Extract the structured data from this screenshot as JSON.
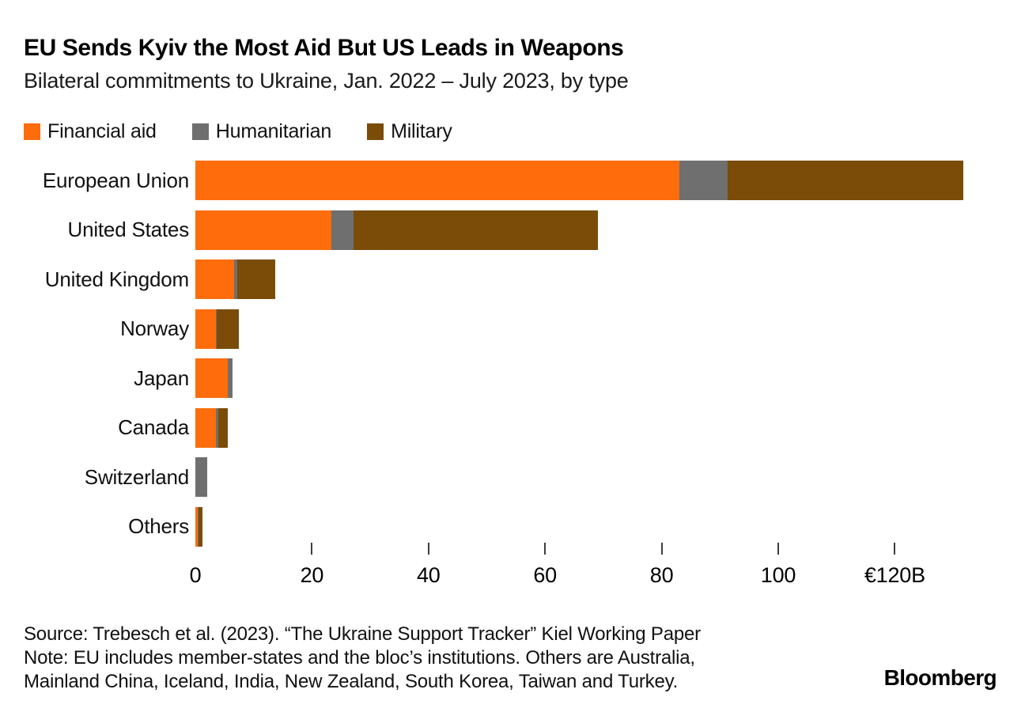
{
  "header": {
    "title": "EU Sends Kyiv the Most Aid But US Leads in Weapons",
    "subtitle": "Bilateral commitments to Ukraine, Jan. 2022 – July 2023, by type"
  },
  "legend": [
    {
      "label": "Financial aid",
      "color": "#FF6C0C"
    },
    {
      "label": "Humanitarian",
      "color": "#6F6F6F"
    },
    {
      "label": "Military",
      "color": "#7A4C08"
    }
  ],
  "chart_data": {
    "type": "bar",
    "orientation": "horizontal",
    "stacked": true,
    "unit": "EUR billions",
    "title": "EU Sends Kyiv the Most Aid But US Leads in Weapons",
    "subtitle": "Bilateral commitments to Ukraine, Jan. 2022 – July 2023, by type",
    "categories": [
      "European Union",
      "United States",
      "United Kingdom",
      "Norway",
      "Japan",
      "Canada",
      "Switzerland",
      "Others"
    ],
    "series": [
      {
        "name": "Financial aid",
        "color": "#FF6C0C",
        "values": [
          83,
          23.4,
          6.7,
          3.5,
          5.6,
          3.5,
          0,
          0.4
        ]
      },
      {
        "name": "Humanitarian",
        "color": "#6F6F6F",
        "values": [
          8.3,
          3.7,
          0.5,
          0.2,
          0.8,
          0.4,
          2.1,
          0.2
        ]
      },
      {
        "name": "Military",
        "color": "#7A4C08",
        "values": [
          40.5,
          42,
          6.5,
          3.7,
          0,
          1.6,
          0,
          0.6
        ]
      }
    ],
    "totals": [
      131.8,
      69.1,
      13.7,
      7.4,
      6.4,
      5.5,
      2.1,
      1.2
    ],
    "xlim": [
      0,
      133
    ],
    "grid": false,
    "legend_position": "top",
    "axis": {
      "ticks": [
        {
          "value": 0,
          "label": "0",
          "mark": false
        },
        {
          "value": 20,
          "label": "20",
          "mark": true
        },
        {
          "value": 40,
          "label": "40",
          "mark": true
        },
        {
          "value": 60,
          "label": "60",
          "mark": true
        },
        {
          "value": 80,
          "label": "80",
          "mark": true
        },
        {
          "value": 100,
          "label": "100",
          "mark": true
        },
        {
          "value": 120,
          "label": "€120B",
          "mark": true
        }
      ]
    }
  },
  "footer": {
    "source": "Source: Trebesch et al. (2023). “The Ukraine Support Tracker” Kiel Working Paper",
    "note_line1": "Note: EU includes member-states and the bloc’s institutions. Others are Australia,",
    "note_line2": "Mainland China, Iceland, India, New Zealand, South Korea, Taiwan and Turkey.",
    "brand": "Bloomberg"
  }
}
